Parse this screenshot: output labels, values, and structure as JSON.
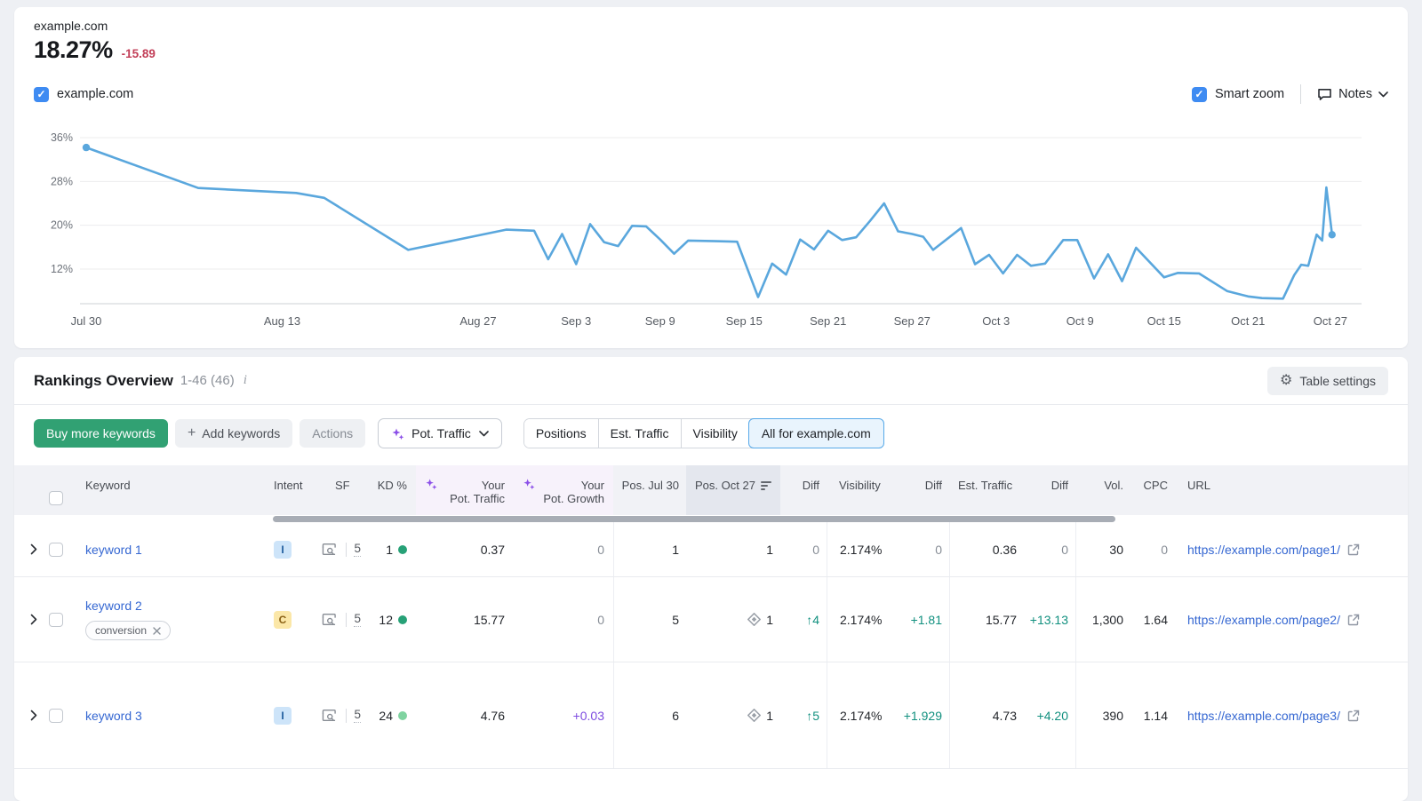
{
  "kpi": {
    "domain": "example.com",
    "value": "18.27%",
    "change": "-15.89",
    "change_color": "#c23e57"
  },
  "legend": {
    "label": "example.com",
    "checked": true
  },
  "controls": {
    "smart_zoom_label": "Smart zoom",
    "notes_label": "Notes"
  },
  "chart_data": {
    "type": "line",
    "title": "example.com visibility trend",
    "legend_position": "top-left",
    "grid": "horizontal",
    "line_color": "#5aa7dd",
    "ylim": [
      4,
      38
    ],
    "y_ticks": [
      {
        "label": "36%",
        "value": 36
      },
      {
        "label": "28%",
        "value": 28
      },
      {
        "label": "20%",
        "value": 20
      },
      {
        "label": "12%",
        "value": 12
      }
    ],
    "x_ticks": [
      {
        "label": "Jul 30",
        "day": 0
      },
      {
        "label": "Aug 13",
        "day": 14
      },
      {
        "label": "Aug 27",
        "day": 28
      },
      {
        "label": "Sep 3",
        "day": 35
      },
      {
        "label": "Sep 9",
        "day": 41
      },
      {
        "label": "Sep 15",
        "day": 47
      },
      {
        "label": "Sep 21",
        "day": 53
      },
      {
        "label": "Sep 27",
        "day": 59
      },
      {
        "label": "Oct 3",
        "day": 65
      },
      {
        "label": "Oct 9",
        "day": 71
      },
      {
        "label": "Oct 15",
        "day": 77
      },
      {
        "label": "Oct 21",
        "day": 83
      },
      {
        "label": "Oct 27",
        "day": 89
      }
    ],
    "series": [
      {
        "name": "example.com",
        "points": [
          [
            0,
            34.2
          ],
          [
            8,
            26.8
          ],
          [
            15,
            25.9
          ],
          [
            17,
            25.0
          ],
          [
            23,
            15.5
          ],
          [
            30,
            19.2
          ],
          [
            32,
            19.0
          ],
          [
            33,
            13.8
          ],
          [
            34,
            18.4
          ],
          [
            35,
            12.9
          ],
          [
            36,
            20.2
          ],
          [
            37,
            16.9
          ],
          [
            38,
            16.2
          ],
          [
            39,
            19.9
          ],
          [
            40,
            19.8
          ],
          [
            41,
            17.4
          ],
          [
            42,
            14.8
          ],
          [
            43,
            17.2
          ],
          [
            45,
            17.1
          ],
          [
            46.5,
            17.0
          ],
          [
            48,
            6.9
          ],
          [
            49,
            13.0
          ],
          [
            50,
            11.0
          ],
          [
            51,
            17.4
          ],
          [
            52,
            15.6
          ],
          [
            53,
            19.0
          ],
          [
            54,
            17.3
          ],
          [
            55,
            17.8
          ],
          [
            56,
            20.8
          ],
          [
            57,
            24.0
          ],
          [
            58,
            18.9
          ],
          [
            59,
            18.4
          ],
          [
            59.8,
            17.9
          ],
          [
            60.5,
            15.5
          ],
          [
            62.5,
            19.5
          ],
          [
            63.5,
            12.9
          ],
          [
            64.5,
            14.6
          ],
          [
            65.5,
            11.2
          ],
          [
            66.5,
            14.6
          ],
          [
            67.5,
            12.6
          ],
          [
            68.5,
            13.0
          ],
          [
            69.8,
            17.3
          ],
          [
            70.8,
            17.3
          ],
          [
            72,
            10.3
          ],
          [
            73,
            14.7
          ],
          [
            74,
            9.8
          ],
          [
            75,
            15.9
          ],
          [
            77,
            10.5
          ],
          [
            78,
            11.3
          ],
          [
            79.5,
            11.2
          ],
          [
            81.5,
            8.0
          ],
          [
            83,
            7.0
          ],
          [
            84,
            6.7
          ],
          [
            85.5,
            6.6
          ],
          [
            86.3,
            10.9
          ],
          [
            86.8,
            12.8
          ],
          [
            87.3,
            12.6
          ],
          [
            87.9,
            18.3
          ],
          [
            88.3,
            17.2
          ],
          [
            88.6,
            26.9
          ],
          [
            89,
            18.27
          ]
        ]
      }
    ]
  },
  "table": {
    "title": "Rankings Overview",
    "range": "1-46 (46)",
    "settings_label": "Table settings",
    "toolbar": {
      "buy_label": "Buy more keywords",
      "add_label": "Add keywords",
      "actions_label": "Actions",
      "metric_label": "Pot. Traffic"
    },
    "tabs": [
      {
        "label": "Positions"
      },
      {
        "label": "Est. Traffic"
      },
      {
        "label": "Visibility"
      },
      {
        "label": "All for example.com",
        "selected": true
      }
    ],
    "columns": {
      "keyword": "Keyword",
      "intent": "Intent",
      "sf": "SF",
      "kd": "KD %",
      "pot_traffic_l1": "Your",
      "pot_traffic_l2": "Pot. Traffic",
      "pot_growth_l1": "Your",
      "pot_growth_l2": "Pot. Growth",
      "pos_jul": "Pos. Jul 30",
      "pos_oct": "Pos. Oct 27",
      "diff1": "Diff",
      "visibility": "Visibility",
      "diff2": "Diff",
      "est_traffic": "Est. Traffic",
      "diff3": "Diff",
      "vol": "Vol.",
      "cpc": "CPC",
      "url": "URL"
    },
    "rows": [
      {
        "keyword": "keyword 1",
        "intent": "I",
        "intent_bg": "#cde4f9",
        "intent_color": "#1c5a9c",
        "sf": "5",
        "kd": "1",
        "kd_color": "#27a177",
        "pot_traffic": "0.37",
        "pot_growth": "0",
        "pos_jul": "1",
        "pos_oct": "1",
        "diff_pos": "0",
        "visibility": "2.174%",
        "diff_vis": "0",
        "est_traffic": "0.36",
        "diff_est": "0",
        "vol": "30",
        "cpc": "0",
        "url": "https://example.com/page1/"
      },
      {
        "keyword": "keyword 2",
        "tag": "conversion",
        "intent": "C",
        "intent_bg": "#fbe7a8",
        "intent_color": "#8a6116",
        "sf": "5",
        "kd": "12",
        "kd_color": "#27a177",
        "pot_traffic": "15.77",
        "pot_growth": "0",
        "pos_jul": "5",
        "pos_oct": "1",
        "diff_pos": "↑4",
        "visibility": "2.174%",
        "diff_vis": "+1.81",
        "est_traffic": "15.77",
        "diff_est": "+13.13",
        "vol": "1,300",
        "cpc": "1.64",
        "url": "https://example.com/page2/"
      },
      {
        "keyword": "keyword 3",
        "intent": "I",
        "intent_bg": "#cde4f9",
        "intent_color": "#1c5a9c",
        "sf": "5",
        "kd": "24",
        "kd_color": "#7fd3a0",
        "pot_traffic": "4.76",
        "pot_growth": "+0.03",
        "pos_jul": "6",
        "pos_oct": "1",
        "diff_pos": "↑5",
        "visibility": "2.174%",
        "diff_vis": "+1.929",
        "est_traffic": "4.73",
        "diff_est": "+4.20",
        "vol": "390",
        "cpc": "1.14",
        "url": "https://example.com/page3/"
      }
    ]
  }
}
